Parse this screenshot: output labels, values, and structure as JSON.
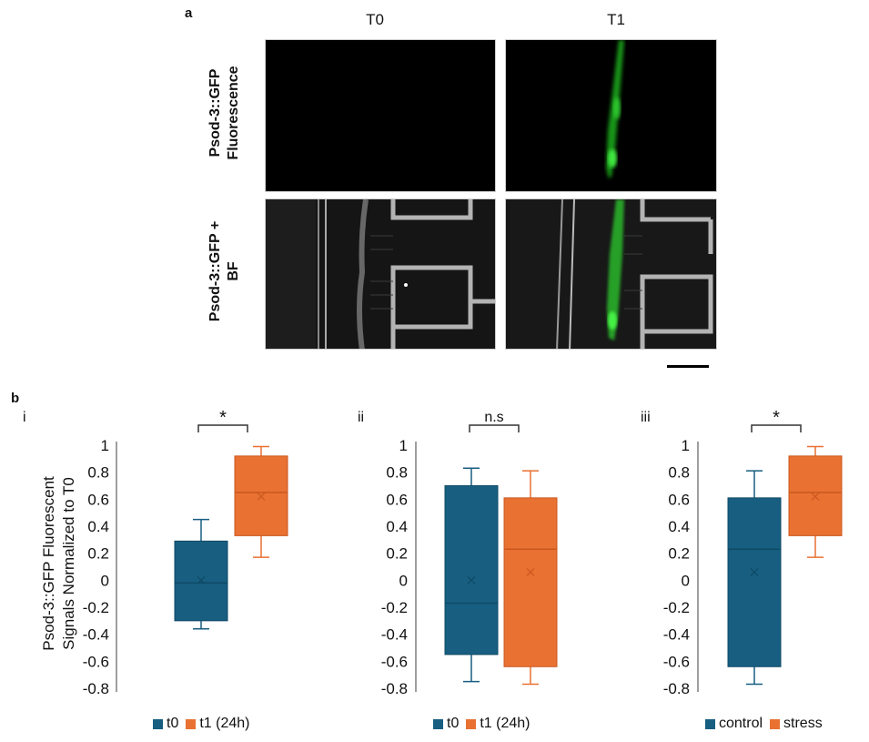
{
  "panel_a": {
    "letter": "a",
    "columns": [
      "T0",
      "T1"
    ],
    "rows": [
      {
        "line1": "Psod-3::GFP",
        "line2": "Fluorescence"
      },
      {
        "line1": "Psod-3::GFP +",
        "line2": "BF"
      }
    ]
  },
  "panel_b": {
    "letter": "b",
    "y_axis_title_line1": "Psod-3::GFP Fluorescent",
    "y_axis_title_line2": "Signals Normalized to T0"
  },
  "colors": {
    "blue": "#175e80",
    "blue_dark": "#0f4a66",
    "orange": "#e97132",
    "orange_dark": "#c9581f",
    "axis": "#7f7f7f",
    "green": "#2bd12b"
  },
  "chart_data": [
    {
      "type": "box",
      "label": "i",
      "ylim": [
        -0.8,
        1
      ],
      "yticks": [
        "1",
        "0.8",
        "0.6",
        "0.4",
        "0.2",
        "0",
        "-0.2",
        "-0.4",
        "-0.6",
        "-0.8"
      ],
      "significance": "*",
      "legend": [
        "t0",
        "t1 (24h)"
      ],
      "series": [
        {
          "name": "t0",
          "min": -0.36,
          "q1": -0.3,
          "median": -0.02,
          "q3": 0.29,
          "max": 0.45,
          "mean": 0.0
        },
        {
          "name": "t1 (24h)",
          "min": 0.17,
          "q1": 0.33,
          "median": 0.65,
          "q3": 0.92,
          "max": 0.99,
          "mean": 0.62
        }
      ]
    },
    {
      "type": "box",
      "label": "ii",
      "ylim": [
        -0.8,
        1
      ],
      "yticks": [
        "1",
        "0.8",
        "0.6",
        "0.4",
        "0.2",
        "0",
        "-0.2",
        "-0.4",
        "-0.6",
        "-0.8"
      ],
      "significance": "n.s",
      "legend": [
        "t0",
        "t1 (24h)"
      ],
      "series": [
        {
          "name": "t0",
          "min": -0.75,
          "q1": -0.55,
          "median": -0.17,
          "q3": 0.7,
          "max": 0.83,
          "mean": 0.0
        },
        {
          "name": "t1 (24h)",
          "min": -0.77,
          "q1": -0.64,
          "median": 0.23,
          "q3": 0.61,
          "max": 0.81,
          "mean": 0.06
        }
      ]
    },
    {
      "type": "box",
      "label": "iii",
      "ylim": [
        -0.8,
        1
      ],
      "yticks": [
        "1",
        "0.8",
        "0.6",
        "0.4",
        "0.2",
        "0",
        "-0.2",
        "-0.4",
        "-0.6",
        "-0.8"
      ],
      "significance": "*",
      "legend": [
        "control",
        "stress"
      ],
      "series": [
        {
          "name": "control",
          "min": -0.77,
          "q1": -0.64,
          "median": 0.23,
          "q3": 0.61,
          "max": 0.81,
          "mean": 0.06
        },
        {
          "name": "stress",
          "min": 0.17,
          "q1": 0.33,
          "median": 0.65,
          "q3": 0.92,
          "max": 0.99,
          "mean": 0.62
        }
      ]
    }
  ]
}
